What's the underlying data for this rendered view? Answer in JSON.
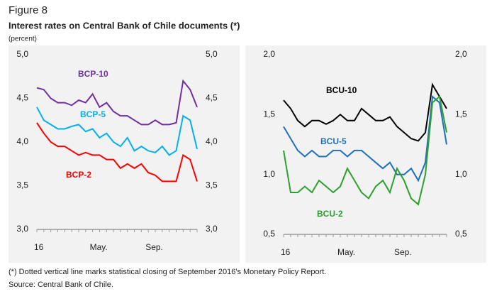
{
  "header": {
    "figure": "Figure 8",
    "title": "Interest rates on Central Bank of Chile documents (*)",
    "unit": "(percent)"
  },
  "footer": {
    "note": "(*) Dotted vertical line marks statistical closing of September 2016's Monetary Policy Report.",
    "source": "Source: Central Bank of Chile."
  },
  "chart_data": [
    {
      "type": "line",
      "categories": [
        "16",
        null,
        null,
        null,
        null,
        null,
        null,
        null,
        "May.",
        null,
        null,
        null,
        null,
        null,
        null,
        null,
        "Sep.",
        null,
        null,
        null,
        null,
        null,
        null,
        null
      ],
      "ylim": [
        3,
        5
      ],
      "yticks": [
        {
          "value": 3,
          "label": "3,0"
        },
        {
          "value": 3.5,
          "label": "3,5"
        },
        {
          "value": 4,
          "label": "4,0"
        },
        {
          "value": 4.5,
          "label": "4,5"
        },
        {
          "value": 5,
          "label": "5,0"
        }
      ],
      "series": [
        {
          "name": "BCP-10",
          "color": "#7030a0",
          "values": [
            4.62,
            4.6,
            4.5,
            4.45,
            4.45,
            4.42,
            4.48,
            4.45,
            4.55,
            4.4,
            4.45,
            4.35,
            4.3,
            4.3,
            4.25,
            4.2,
            4.2,
            4.25,
            4.2,
            4.2,
            4.22,
            4.7,
            4.6,
            4.4
          ]
        },
        {
          "name": "BCP-5",
          "color": "#00b0f0",
          "values": [
            4.4,
            4.25,
            4.2,
            4.15,
            4.15,
            4.18,
            4.2,
            4.12,
            4.15,
            4.05,
            4.1,
            4.0,
            3.95,
            4.05,
            3.9,
            3.95,
            3.9,
            3.88,
            3.95,
            3.85,
            3.9,
            4.3,
            4.25,
            3.92
          ]
        },
        {
          "name": "BCP-2",
          "color": "#ff0000",
          "values": [
            4.22,
            4.1,
            4.0,
            3.95,
            3.95,
            3.9,
            3.85,
            3.88,
            3.85,
            3.85,
            3.8,
            3.8,
            3.7,
            3.75,
            3.7,
            3.75,
            3.65,
            3.62,
            3.55,
            3.55,
            3.55,
            3.85,
            3.8,
            3.55
          ]
        }
      ]
    },
    {
      "type": "line",
      "categories": [
        "16",
        null,
        null,
        null,
        null,
        null,
        null,
        null,
        "May.",
        null,
        null,
        null,
        null,
        null,
        null,
        null,
        "Sep.",
        null,
        null,
        null,
        null,
        null,
        null,
        null
      ],
      "ylim": [
        0.5,
        2
      ],
      "yticks": [
        {
          "value": 0.5,
          "label": "0,5"
        },
        {
          "value": 1,
          "label": "1,0"
        },
        {
          "value": 1.5,
          "label": "1,5"
        },
        {
          "value": 2,
          "label": "2,0"
        }
      ],
      "series": [
        {
          "name": "BCU-10",
          "color": "#000000",
          "values": [
            1.62,
            1.55,
            1.45,
            1.4,
            1.45,
            1.45,
            1.42,
            1.45,
            1.5,
            1.45,
            1.45,
            1.55,
            1.5,
            1.45,
            1.45,
            1.48,
            1.4,
            1.35,
            1.3,
            1.28,
            1.35,
            1.75,
            1.65,
            1.55
          ]
        },
        {
          "name": "BCU-5",
          "color": "#1f6fbf",
          "values": [
            1.4,
            1.3,
            1.2,
            1.15,
            1.2,
            1.15,
            1.15,
            1.2,
            1.2,
            1.15,
            1.2,
            1.2,
            1.15,
            1.1,
            1.05,
            1.1,
            1.0,
            1.0,
            1.05,
            0.95,
            1.1,
            1.65,
            1.6,
            1.25
          ]
        },
        {
          "name": "BCU-2",
          "color": "#2ca02c",
          "values": [
            1.2,
            0.85,
            0.85,
            0.9,
            0.85,
            0.95,
            0.9,
            0.85,
            0.9,
            1.05,
            0.95,
            0.85,
            0.8,
            0.9,
            0.95,
            0.85,
            1.05,
            0.95,
            0.8,
            0.75,
            1.0,
            1.6,
            1.65,
            1.35
          ]
        }
      ]
    }
  ]
}
